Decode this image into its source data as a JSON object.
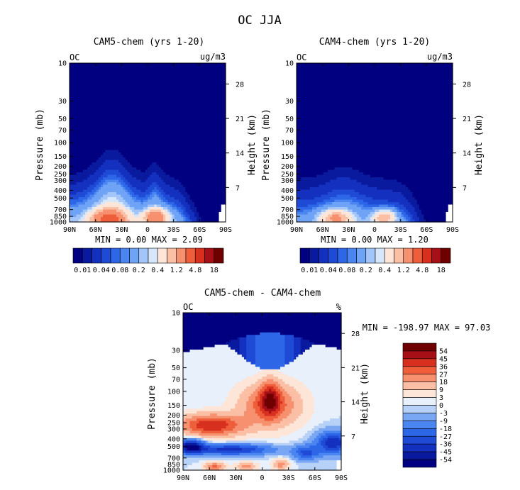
{
  "main_title": "OC JJA",
  "panels": [
    {
      "id": "cam5",
      "title": "CAM5-chem (yrs 1-20)",
      "left_label": "OC",
      "right_label": "ug/m3",
      "ylabel": "Pressure (mb)",
      "y2label": "Height (km)",
      "min_max_text": "MIN =    0.00   MAX =    2.09",
      "colorbar_labels": [
        "0.01",
        "0.04",
        "0.08",
        "0.2",
        "0.4",
        "1.2",
        "4.8",
        "18"
      ]
    },
    {
      "id": "cam4",
      "title": "CAM4-chem (yrs 1-20)",
      "left_label": "OC",
      "right_label": "ug/m3",
      "ylabel": "Pressure (mb)",
      "y2label": "Height (km)",
      "min_max_text": "MIN =    0.00   MAX =    1.20",
      "colorbar_labels": [
        "0.01",
        "0.04",
        "0.08",
        "0.2",
        "0.4",
        "1.2",
        "4.8",
        "18"
      ]
    },
    {
      "id": "diff",
      "title": "CAM5-chem - CAM4-chem",
      "left_label": "OC",
      "right_label": "%",
      "ylabel": "Pressure (mb)",
      "y2label": "Height (km)",
      "min_max_text": "MIN = -198.97  MAX =   97.03",
      "colorbar_labels": [
        "54",
        "45",
        "36",
        "27",
        "18",
        "9",
        "3",
        "0",
        "-3",
        "-9",
        "-18",
        "-27",
        "-36",
        "-45",
        "-54"
      ]
    }
  ],
  "chart_data": [
    {
      "type": "heatmap",
      "title": "CAM5-chem (yrs 1-20)",
      "x_tick_labels": [
        "90N",
        "60N",
        "30N",
        "0",
        "30S",
        "60S",
        "90S"
      ],
      "x_ticks_deg": [
        90,
        60,
        30,
        0,
        -30,
        -60,
        -90
      ],
      "y_tick_labels": [
        "10",
        "30",
        "50",
        "70",
        "100",
        "150",
        "200",
        "250",
        "300",
        "400",
        "500",
        "700",
        "850",
        "1000"
      ],
      "y_ticks_mb": [
        10,
        30,
        50,
        70,
        100,
        150,
        200,
        250,
        300,
        400,
        500,
        700,
        850,
        1000
      ],
      "y2_tick_labels": [
        "28",
        "21",
        "14",
        "7"
      ],
      "y2_ticks_km": [
        28,
        21,
        14,
        7
      ],
      "xlim": [
        90,
        -90
      ],
      "ylim_mb": [
        1000,
        10
      ],
      "y_scale": "log",
      "value_min": 0.0,
      "value_max": 2.09,
      "unit": "ug/m3",
      "levels": [
        0.01,
        0.02,
        0.04,
        0.06,
        0.08,
        0.1,
        0.2,
        0.3,
        0.4,
        0.8,
        1.2,
        2.4,
        4.8,
        9.6,
        18
      ],
      "colors": [
        "#000080",
        "#0a1a9f",
        "#1430bf",
        "#1e4ad6",
        "#2e66e8",
        "#4a85f0",
        "#6fa3f5",
        "#a3c5f8",
        "#d6e6fb",
        "#fde5d8",
        "#fbbfa5",
        "#f6906e",
        "#ee5e3b",
        "#d7301f",
        "#a50f15",
        "#6e0000"
      ],
      "colorbar_labels": [
        "0.01",
        "0.04",
        "0.08",
        "0.2",
        "0.4",
        "1.2",
        "4.8",
        "18"
      ]
    },
    {
      "type": "heatmap",
      "title": "CAM4-chem (yrs 1-20)",
      "x_tick_labels": [
        "90N",
        "60N",
        "30N",
        "0",
        "30S",
        "60S",
        "90S"
      ],
      "x_ticks_deg": [
        90,
        60,
        30,
        0,
        -30,
        -60,
        -90
      ],
      "y_tick_labels": [
        "10",
        "30",
        "50",
        "70",
        "100",
        "150",
        "200",
        "250",
        "300",
        "400",
        "500",
        "700",
        "850",
        "1000"
      ],
      "y_ticks_mb": [
        10,
        30,
        50,
        70,
        100,
        150,
        200,
        250,
        300,
        400,
        500,
        700,
        850,
        1000
      ],
      "y2_tick_labels": [
        "28",
        "21",
        "14",
        "7"
      ],
      "y2_ticks_km": [
        28,
        21,
        14,
        7
      ],
      "xlim": [
        90,
        -90
      ],
      "ylim_mb": [
        1000,
        10
      ],
      "y_scale": "log",
      "value_min": 0.0,
      "value_max": 1.2,
      "unit": "ug/m3",
      "levels": [
        0.01,
        0.02,
        0.04,
        0.06,
        0.08,
        0.1,
        0.2,
        0.3,
        0.4,
        0.8,
        1.2,
        2.4,
        4.8,
        9.6,
        18
      ],
      "colors": [
        "#000080",
        "#0a1a9f",
        "#1430bf",
        "#1e4ad6",
        "#2e66e8",
        "#4a85f0",
        "#6fa3f5",
        "#a3c5f8",
        "#d6e6fb",
        "#fde5d8",
        "#fbbfa5",
        "#f6906e",
        "#ee5e3b",
        "#d7301f",
        "#a50f15",
        "#6e0000"
      ],
      "colorbar_labels": [
        "0.01",
        "0.04",
        "0.08",
        "0.2",
        "0.4",
        "1.2",
        "4.8",
        "18"
      ]
    },
    {
      "type": "heatmap",
      "title": "CAM5-chem - CAM4-chem",
      "x_tick_labels": [
        "90N",
        "60N",
        "30N",
        "0",
        "30S",
        "60S",
        "90S"
      ],
      "x_ticks_deg": [
        90,
        60,
        30,
        0,
        -30,
        -60,
        -90
      ],
      "y_tick_labels": [
        "10",
        "30",
        "50",
        "70",
        "100",
        "150",
        "200",
        "250",
        "300",
        "400",
        "500",
        "700",
        "850",
        "1000"
      ],
      "y_ticks_mb": [
        10,
        30,
        50,
        70,
        100,
        150,
        200,
        250,
        300,
        400,
        500,
        700,
        850,
        1000
      ],
      "y2_tick_labels": [
        "28",
        "21",
        "14",
        "7"
      ],
      "y2_ticks_km": [
        28,
        21,
        14,
        7
      ],
      "xlim": [
        90,
        -90
      ],
      "ylim_mb": [
        1000,
        10
      ],
      "y_scale": "log",
      "value_min": -198.97,
      "value_max": 97.03,
      "unit": "%",
      "levels": [
        -54,
        -45,
        -36,
        -27,
        -18,
        -9,
        -3,
        0,
        3,
        9,
        18,
        27,
        36,
        45,
        54
      ],
      "colors": [
        "#000080",
        "#0a1a9f",
        "#1430bf",
        "#1e4ad6",
        "#2e66e8",
        "#4a85f0",
        "#7aa7f3",
        "#b7d1f7",
        "#e8f0fb",
        "#fde5d8",
        "#fbbfa5",
        "#f6906e",
        "#ee5e3b",
        "#d7301f",
        "#a50f15",
        "#6e0000"
      ],
      "colorbar_labels": [
        "54",
        "45",
        "36",
        "27",
        "18",
        "9",
        "3",
        "0",
        "-3",
        "-9",
        "-18",
        "-27",
        "-36",
        "-45",
        "-54"
      ]
    }
  ]
}
